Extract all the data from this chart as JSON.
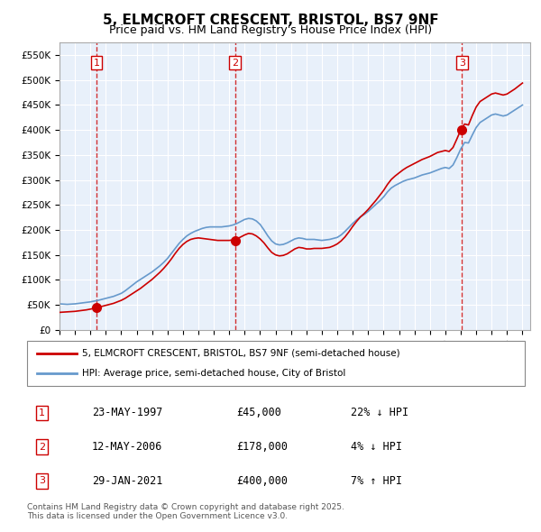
{
  "title": "5, ELMCROFT CRESCENT, BRISTOL, BS7 9NF",
  "subtitle": "Price paid vs. HM Land Registry's House Price Index (HPI)",
  "ylabel_ticks": [
    "£0",
    "£50K",
    "£100K",
    "£150K",
    "£200K",
    "£250K",
    "£300K",
    "£350K",
    "£400K",
    "£450K",
    "£500K",
    "£550K"
  ],
  "ytick_values": [
    0,
    50000,
    100000,
    150000,
    200000,
    250000,
    300000,
    350000,
    400000,
    450000,
    500000,
    550000
  ],
  "ylim": [
    0,
    575000
  ],
  "xlim_start": 1995.0,
  "xlim_end": 2025.5,
  "sale_dates": [
    1997.39,
    2006.37,
    2021.08
  ],
  "sale_prices": [
    45000,
    178000,
    400000
  ],
  "sale_labels": [
    "1",
    "2",
    "3"
  ],
  "legend_line1": "5, ELMCROFT CRESCENT, BRISTOL, BS7 9NF (semi-detached house)",
  "legend_line2": "HPI: Average price, semi-detached house, City of Bristol",
  "table_rows": [
    {
      "num": "1",
      "date": "23-MAY-1997",
      "price": "£45,000",
      "change": "22% ↓ HPI"
    },
    {
      "num": "2",
      "date": "12-MAY-2006",
      "price": "£178,000",
      "change": "4% ↓ HPI"
    },
    {
      "num": "3",
      "date": "29-JAN-2021",
      "price": "£400,000",
      "change": "7% ↑ HPI"
    }
  ],
  "footer": "Contains HM Land Registry data © Crown copyright and database right 2025.\nThis data is licensed under the Open Government Licence v3.0.",
  "bg_color": "#dce9f5",
  "plot_bg": "#e8f0fa",
  "red_line_color": "#cc0000",
  "blue_line_color": "#6699cc",
  "sale_marker_color": "#cc0000",
  "dashed_line_color": "#cc0000",
  "hpi_data_x": [
    1995.0,
    1995.25,
    1995.5,
    1995.75,
    1996.0,
    1996.25,
    1996.5,
    1996.75,
    1997.0,
    1997.25,
    1997.5,
    1997.75,
    1998.0,
    1998.25,
    1998.5,
    1998.75,
    1999.0,
    1999.25,
    1999.5,
    1999.75,
    2000.0,
    2000.25,
    2000.5,
    2000.75,
    2001.0,
    2001.25,
    2001.5,
    2001.75,
    2002.0,
    2002.25,
    2002.5,
    2002.75,
    2003.0,
    2003.25,
    2003.5,
    2003.75,
    2004.0,
    2004.25,
    2004.5,
    2004.75,
    2005.0,
    2005.25,
    2005.5,
    2005.75,
    2006.0,
    2006.25,
    2006.5,
    2006.75,
    2007.0,
    2007.25,
    2007.5,
    2007.75,
    2008.0,
    2008.25,
    2008.5,
    2008.75,
    2009.0,
    2009.25,
    2009.5,
    2009.75,
    2010.0,
    2010.25,
    2010.5,
    2010.75,
    2011.0,
    2011.25,
    2011.5,
    2011.75,
    2012.0,
    2012.25,
    2012.5,
    2012.75,
    2013.0,
    2013.25,
    2013.5,
    2013.75,
    2014.0,
    2014.25,
    2014.5,
    2014.75,
    2015.0,
    2015.25,
    2015.5,
    2015.75,
    2016.0,
    2016.25,
    2016.5,
    2016.75,
    2017.0,
    2017.25,
    2017.5,
    2017.75,
    2018.0,
    2018.25,
    2018.5,
    2018.75,
    2019.0,
    2019.25,
    2019.5,
    2019.75,
    2020.0,
    2020.25,
    2020.5,
    2020.75,
    2021.0,
    2021.25,
    2021.5,
    2021.75,
    2022.0,
    2022.25,
    2022.5,
    2022.75,
    2023.0,
    2023.25,
    2023.5,
    2023.75,
    2024.0,
    2024.25,
    2024.5,
    2024.75,
    2025.0
  ],
  "hpi_data_y": [
    52000,
    51500,
    51000,
    51500,
    52000,
    53000,
    54000,
    55000,
    56000,
    57500,
    59000,
    61000,
    63000,
    65000,
    67000,
    70000,
    73000,
    78000,
    84000,
    90000,
    96000,
    101000,
    106000,
    111000,
    116000,
    122000,
    128000,
    135000,
    143000,
    153000,
    163000,
    173000,
    181000,
    188000,
    193000,
    197000,
    200000,
    203000,
    205000,
    206000,
    206000,
    206000,
    206000,
    207000,
    208000,
    210000,
    213000,
    217000,
    221000,
    223000,
    222000,
    218000,
    211000,
    200000,
    188000,
    178000,
    172000,
    170000,
    171000,
    174000,
    178000,
    182000,
    184000,
    183000,
    181000,
    181000,
    181000,
    180000,
    179000,
    180000,
    181000,
    183000,
    185000,
    190000,
    197000,
    205000,
    213000,
    220000,
    226000,
    231000,
    237000,
    244000,
    251000,
    258000,
    266000,
    276000,
    284000,
    289000,
    293000,
    297000,
    300000,
    302000,
    304000,
    307000,
    310000,
    312000,
    314000,
    317000,
    320000,
    323000,
    325000,
    323000,
    330000,
    345000,
    362000,
    375000,
    374000,
    390000,
    405000,
    415000,
    420000,
    425000,
    430000,
    432000,
    430000,
    428000,
    430000,
    435000,
    440000,
    445000,
    450000
  ],
  "price_data_x": [
    1995.0,
    1995.25,
    1995.5,
    1995.75,
    1996.0,
    1996.25,
    1996.5,
    1996.75,
    1997.0,
    1997.25,
    1997.5,
    1997.75,
    1998.0,
    1998.25,
    1998.5,
    1998.75,
    1999.0,
    1999.25,
    1999.5,
    1999.75,
    2000.0,
    2000.25,
    2000.5,
    2000.75,
    2001.0,
    2001.25,
    2001.5,
    2001.75,
    2002.0,
    2002.25,
    2002.5,
    2002.75,
    2003.0,
    2003.25,
    2003.5,
    2003.75,
    2004.0,
    2004.25,
    2004.5,
    2004.75,
    2005.0,
    2005.25,
    2005.5,
    2005.75,
    2006.0,
    2006.25,
    2006.5,
    2006.75,
    2007.0,
    2007.25,
    2007.5,
    2007.75,
    2008.0,
    2008.25,
    2008.5,
    2008.75,
    2009.0,
    2009.25,
    2009.5,
    2009.75,
    2010.0,
    2010.25,
    2010.5,
    2010.75,
    2011.0,
    2011.25,
    2011.5,
    2011.75,
    2012.0,
    2012.25,
    2012.5,
    2012.75,
    2013.0,
    2013.25,
    2013.5,
    2013.75,
    2014.0,
    2014.25,
    2014.5,
    2014.75,
    2015.0,
    2015.25,
    2015.5,
    2015.75,
    2016.0,
    2016.25,
    2016.5,
    2016.75,
    2017.0,
    2017.25,
    2017.5,
    2017.75,
    2018.0,
    2018.25,
    2018.5,
    2018.75,
    2019.0,
    2019.25,
    2019.5,
    2019.75,
    2020.0,
    2020.25,
    2020.5,
    2020.75,
    2021.0,
    2021.25,
    2021.5,
    2021.75,
    2022.0,
    2022.25,
    2022.5,
    2022.75,
    2023.0,
    2023.25,
    2023.5,
    2023.75,
    2024.0,
    2024.25,
    2024.5,
    2024.75,
    2025.0
  ],
  "price_data_y": [
    35000,
    35500,
    36000,
    36500,
    37000,
    38000,
    39000,
    40000,
    41500,
    43000,
    45000,
    47000,
    49000,
    51000,
    53000,
    56000,
    59000,
    63000,
    68000,
    73000,
    78000,
    83000,
    89000,
    95000,
    101000,
    108000,
    115000,
    123000,
    132000,
    142000,
    153000,
    163000,
    171000,
    177000,
    181000,
    183000,
    184000,
    183000,
    182000,
    181000,
    180000,
    179000,
    179000,
    179000,
    179000,
    180000,
    182000,
    186000,
    190000,
    193000,
    192000,
    188000,
    182000,
    174000,
    164000,
    155000,
    150000,
    148000,
    149000,
    152000,
    157000,
    162000,
    165000,
    164000,
    162000,
    162000,
    163000,
    163000,
    163000,
    164000,
    165000,
    168000,
    172000,
    178000,
    186000,
    196000,
    207000,
    217000,
    226000,
    233000,
    241000,
    250000,
    259000,
    269000,
    279000,
    291000,
    301000,
    308000,
    314000,
    320000,
    325000,
    329000,
    333000,
    337000,
    341000,
    344000,
    347000,
    351000,
    355000,
    357000,
    359000,
    357000,
    365000,
    382000,
    400000,
    412000,
    410000,
    429000,
    446000,
    457000,
    462000,
    467000,
    472000,
    474000,
    472000,
    470000,
    472000,
    477000,
    482000,
    488000,
    494000
  ]
}
